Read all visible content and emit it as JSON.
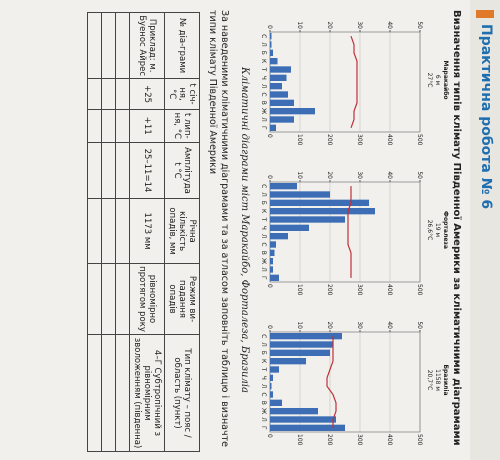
{
  "header": {
    "title": "Практична робота № 6"
  },
  "heading": "Визначення типів клімату Південної Америки за кліматичними діаграмами",
  "months": [
    "С",
    "Л",
    "Б",
    "К",
    "Т",
    "Ч",
    "Л",
    "С",
    "В",
    "Ж",
    "Л",
    "Г"
  ],
  "diagrams": [
    {
      "city": "Маракайбо",
      "altitude": "6 м",
      "temperature": "27°C",
      "precip_ticks": [
        0,
        100,
        200,
        300,
        400,
        500
      ],
      "temp_ticks": [
        0,
        10,
        20,
        30,
        40,
        50
      ],
      "precipitation": [
        5,
        5,
        10,
        25,
        70,
        55,
        40,
        60,
        80,
        150,
        80,
        20
      ],
      "temperatures": [
        27,
        28,
        28,
        29,
        29,
        29,
        29,
        29,
        29,
        28,
        28,
        27
      ]
    },
    {
      "city": "Форталеза",
      "altitude": "19 м",
      "temperature": "26,6°C",
      "precip_ticks": [
        0,
        100,
        200,
        300,
        400,
        500
      ],
      "temp_ticks": [
        0,
        10,
        20,
        30,
        40,
        50
      ],
      "precipitation": [
        90,
        200,
        330,
        350,
        250,
        130,
        60,
        20,
        15,
        10,
        10,
        30
      ],
      "temperatures": [
        27,
        27,
        27,
        26,
        26,
        26,
        26,
        26,
        27,
        27,
        27,
        27
      ]
    },
    {
      "city": "Бразиліа",
      "altitude": "1158 м",
      "temperature": "20,7°C",
      "precip_ticks": [
        0,
        100,
        200,
        300,
        400,
        500
      ],
      "temp_ticks": [
        0,
        10,
        20,
        30,
        40,
        50
      ],
      "precipitation": [
        240,
        210,
        200,
        120,
        30,
        10,
        5,
        10,
        40,
        160,
        220,
        250
      ],
      "temperatures": [
        21,
        21,
        21,
        21,
        20,
        19,
        19,
        21,
        22,
        22,
        21,
        21
      ]
    }
  ],
  "caption": "Кліматичні діаграми міст Маракайбо, Форталеза, Бразиліа",
  "instruction": "За наведеними кліматичними діаграмами та за атласом заповніть таблицю і визначте типи клімату Південної Америки",
  "table": {
    "headers": [
      "№ діа-грами",
      "t січ-ня, °C",
      "t лип-ня, °C",
      "Амплітуда t °C",
      "Річна кількість опадів, мм",
      "Режим ви-падання опадів",
      "Тип клімату – пояс / область (пункт)"
    ],
    "rows": [
      [
        "Приклад: м. Буенос Айрес",
        "+25",
        "+11",
        "25–11=14",
        "1173 мм",
        "рівномірно протягом року",
        "4–Г Субтропічний з рівномірним зволоженням (південна)"
      ]
    ]
  }
}
